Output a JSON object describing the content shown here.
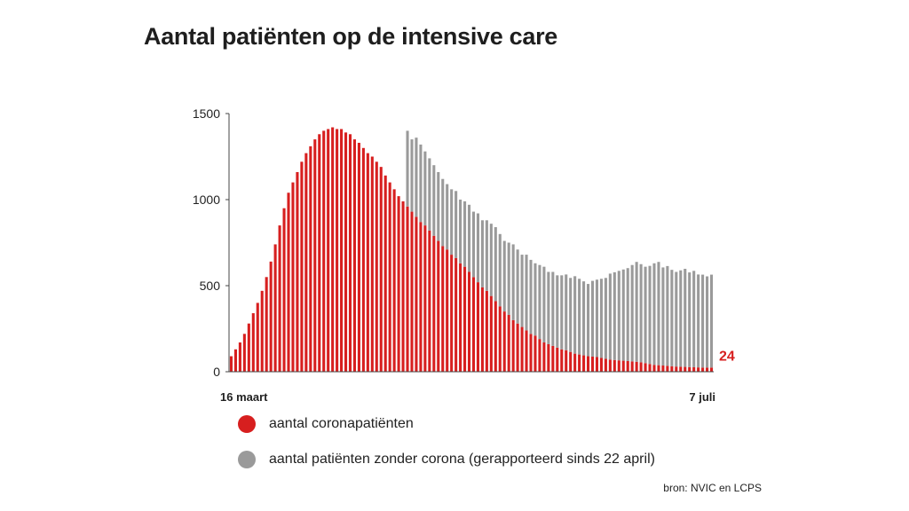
{
  "title": "Aantal patiënten op de intensive care",
  "source": "bron: NVIC en LCPS",
  "colors": {
    "corona": "#d71f1f",
    "other": "#9a9a9a",
    "axis": "#444444"
  },
  "legend": [
    {
      "label": "aantal coronapatiënten",
      "color": "#d71f1f"
    },
    {
      "label": "aantal patiënten zonder corona (gerapporteerd sinds 22 april)",
      "color": "#9a9a9a"
    }
  ],
  "chart_data": {
    "type": "bar",
    "stacked": true,
    "x_tick_labels": [
      "16 maart",
      "7 juli"
    ],
    "x_range": [
      "16 maart",
      "7 juli"
    ],
    "ylim": [
      0,
      1500
    ],
    "yticks": [
      0,
      500,
      1000,
      1500
    ],
    "end_label": "24",
    "series": [
      {
        "name": "aantal coronapatiënten",
        "values": [
          90,
          130,
          170,
          220,
          280,
          340,
          400,
          470,
          550,
          640,
          740,
          850,
          950,
          1040,
          1100,
          1160,
          1220,
          1270,
          1310,
          1350,
          1380,
          1400,
          1410,
          1420,
          1410,
          1410,
          1390,
          1380,
          1350,
          1330,
          1300,
          1270,
          1250,
          1220,
          1190,
          1140,
          1100,
          1060,
          1020,
          990,
          960,
          930,
          900,
          870,
          850,
          820,
          790,
          760,
          730,
          710,
          680,
          660,
          630,
          610,
          580,
          550,
          520,
          490,
          470,
          440,
          410,
          380,
          350,
          330,
          300,
          280,
          260,
          240,
          220,
          210,
          190,
          170,
          160,
          150,
          140,
          130,
          125,
          115,
          105,
          100,
          95,
          90,
          88,
          85,
          80,
          75,
          70,
          68,
          66,
          64,
          62,
          60,
          58,
          55,
          50,
          45,
          40,
          38,
          36,
          34,
          32,
          30,
          29,
          28,
          27,
          26,
          25,
          24,
          24,
          24
        ]
      },
      {
        "name": "aantal patiënten zonder corona (gerapporteerd sinds 22 april)",
        "values": [
          0,
          0,
          0,
          0,
          0,
          0,
          0,
          0,
          0,
          0,
          0,
          0,
          0,
          0,
          0,
          0,
          0,
          0,
          0,
          0,
          0,
          0,
          0,
          0,
          0,
          0,
          0,
          0,
          0,
          0,
          0,
          0,
          0,
          0,
          0,
          0,
          0,
          0,
          0,
          0,
          440,
          420,
          460,
          450,
          430,
          420,
          410,
          400,
          390,
          380,
          380,
          390,
          370,
          380,
          390,
          380,
          400,
          390,
          410,
          420,
          430,
          420,
          410,
          420,
          440,
          430,
          420,
          440,
          430,
          420,
          430,
          440,
          420,
          430,
          420,
          430,
          440,
          430,
          450,
          440,
          430,
          420,
          440,
          450,
          460,
          470,
          500,
          510,
          520,
          530,
          540,
          560,
          580,
          570,
          560,
          570,
          590,
          600,
          570,
          580,
          560,
          550,
          560,
          570,
          550,
          560,
          540,
          540,
          530,
          540
        ]
      }
    ]
  }
}
